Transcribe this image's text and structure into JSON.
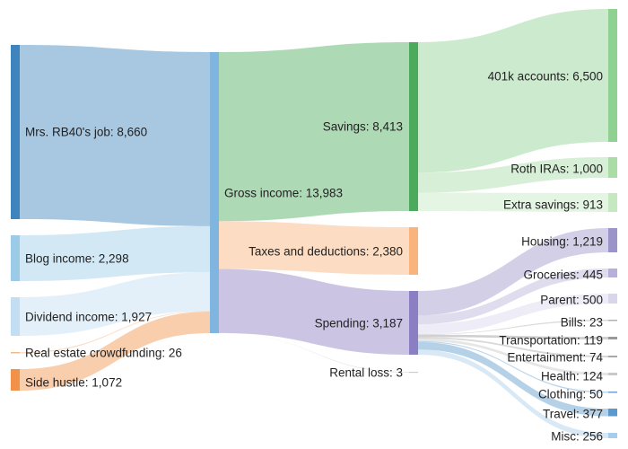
{
  "chart_data": {
    "type": "sankey",
    "unit_note": "",
    "nodes": [
      {
        "id": "job",
        "label": "Mrs. RB40's job: 8,660",
        "value": 8660,
        "color": "#3f84bd"
      },
      {
        "id": "blog",
        "label": "Blog income: 2,298",
        "value": 2298,
        "color": "#9ccbe8"
      },
      {
        "id": "dividend",
        "label": "Dividend income: 1,927",
        "value": 1927,
        "color": "#c2def2"
      },
      {
        "id": "realestate",
        "label": "Real estate crowdfunding: 26",
        "value": 26,
        "color": "#f0b98a"
      },
      {
        "id": "sidehustle",
        "label": "Side hustle: 1,072",
        "value": 1072,
        "color": "#f2924a"
      },
      {
        "id": "gross",
        "label": "Gross income: 13,983",
        "value": 13983,
        "color": "#7fb5df"
      },
      {
        "id": "savings",
        "label": "Savings: 8,413",
        "value": 8413,
        "color": "#4caa5c"
      },
      {
        "id": "taxes",
        "label": "Taxes and deductions: 2,380",
        "value": 2380,
        "color": "#f8b47b"
      },
      {
        "id": "spending",
        "label": "Spending: 3,187",
        "value": 3187,
        "color": "#8b7ec2"
      },
      {
        "id": "rentalloss",
        "label": "Rental loss: 3",
        "value": 3,
        "color": "#cccccc"
      },
      {
        "id": "401k",
        "label": "401k accounts: 6,500",
        "value": 6500,
        "color": "#8fd190"
      },
      {
        "id": "roth",
        "label": "Roth IRAs: 1,000",
        "value": 1000,
        "color": "#a9dca6"
      },
      {
        "id": "extra",
        "label": "Extra savings: 913",
        "value": 913,
        "color": "#c6e8c0"
      },
      {
        "id": "housing",
        "label": "Housing: 1,219",
        "value": 1219,
        "color": "#9b94c9"
      },
      {
        "id": "groceries",
        "label": "Groceries: 445",
        "value": 445,
        "color": "#b7b1d9"
      },
      {
        "id": "parent",
        "label": "Parent: 500",
        "value": 500,
        "color": "#d9d5ea"
      },
      {
        "id": "bills",
        "label": "Bills: 23",
        "value": 23,
        "color": "#b0b0b0"
      },
      {
        "id": "transportation",
        "label": "Transportation: 119",
        "value": 119,
        "color": "#9a9a9a"
      },
      {
        "id": "entertainment",
        "label": "Entertainment: 74",
        "value": 74,
        "color": "#a8a8a8"
      },
      {
        "id": "health",
        "label": "Health: 124",
        "value": 124,
        "color": "#c8c8c8"
      },
      {
        "id": "clothing",
        "label": "Clothing: 50",
        "value": 50,
        "color": "#6ea3d3"
      },
      {
        "id": "travel",
        "label": "Travel: 377",
        "value": 377,
        "color": "#5b98cc"
      },
      {
        "id": "misc",
        "label": "Misc: 256",
        "value": 256,
        "color": "#a9cde9"
      }
    ],
    "links": [
      {
        "source": "job",
        "target": "gross",
        "value": 8660
      },
      {
        "source": "blog",
        "target": "gross",
        "value": 2298
      },
      {
        "source": "dividend",
        "target": "gross",
        "value": 1927
      },
      {
        "source": "realestate",
        "target": "gross",
        "value": 26
      },
      {
        "source": "sidehustle",
        "target": "gross",
        "value": 1072
      },
      {
        "source": "gross",
        "target": "savings",
        "value": 8413
      },
      {
        "source": "gross",
        "target": "taxes",
        "value": 2380
      },
      {
        "source": "gross",
        "target": "spending",
        "value": 3187
      },
      {
        "source": "gross",
        "target": "rentalloss",
        "value": 3
      },
      {
        "source": "savings",
        "target": "401k",
        "value": 6500
      },
      {
        "source": "savings",
        "target": "roth",
        "value": 1000
      },
      {
        "source": "savings",
        "target": "extra",
        "value": 913
      },
      {
        "source": "spending",
        "target": "housing",
        "value": 1219
      },
      {
        "source": "spending",
        "target": "groceries",
        "value": 445
      },
      {
        "source": "spending",
        "target": "parent",
        "value": 500
      },
      {
        "source": "spending",
        "target": "bills",
        "value": 23
      },
      {
        "source": "spending",
        "target": "transportation",
        "value": 119
      },
      {
        "source": "spending",
        "target": "entertainment",
        "value": 74
      },
      {
        "source": "spending",
        "target": "health",
        "value": 124
      },
      {
        "source": "spending",
        "target": "clothing",
        "value": 50
      },
      {
        "source": "spending",
        "target": "travel",
        "value": 377
      },
      {
        "source": "spending",
        "target": "misc",
        "value": 256
      }
    ]
  }
}
